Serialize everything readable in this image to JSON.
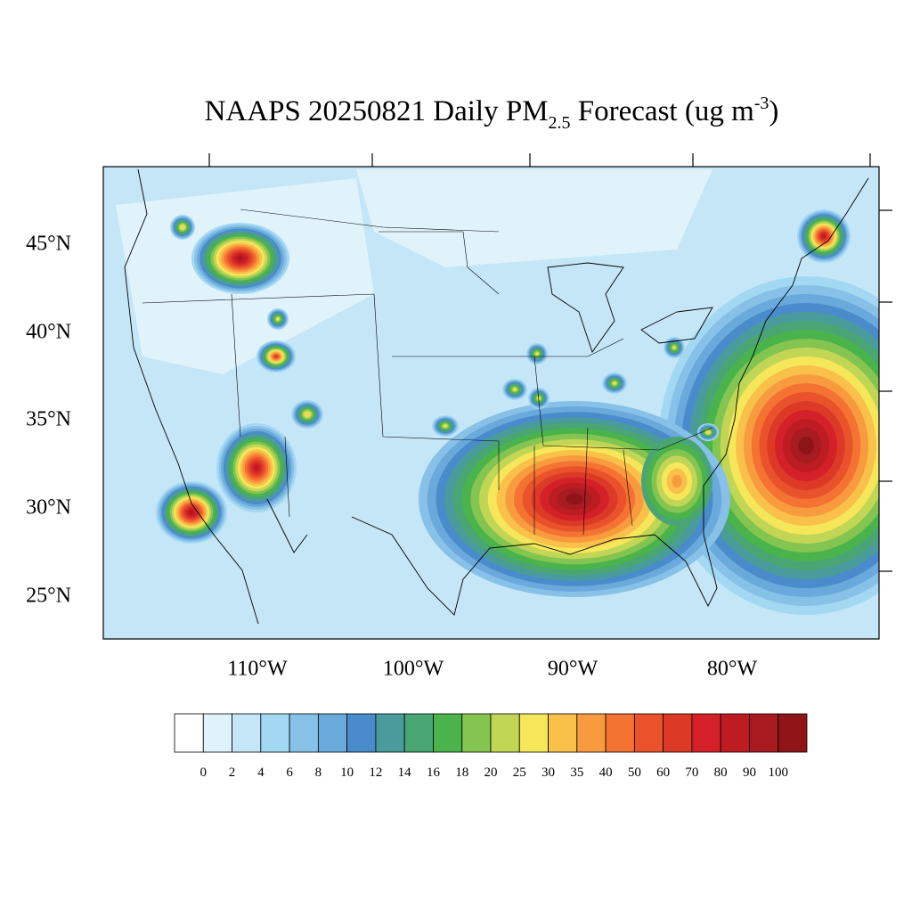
{
  "title": {
    "main": "NAAPS 20250821 Daily PM",
    "subscript": "2.5",
    "middle": " Forecast (ug m",
    "superscript": "-3",
    "end": ")"
  },
  "map": {
    "lat_labels": [
      "45°N",
      "40°N",
      "35°N",
      "30°N",
      "25°N"
    ],
    "lon_labels": [
      "110°W",
      "100°W",
      "90°W",
      "80°W"
    ]
  },
  "colorbar": {
    "levels": [
      0,
      2,
      4,
      6,
      8,
      10,
      12,
      14,
      16,
      18,
      20,
      25,
      30,
      35,
      40,
      50,
      60,
      70,
      80,
      90,
      100
    ],
    "colors": [
      "#ffffff",
      "#e0f3fb",
      "#c4e6f7",
      "#a3d8f3",
      "#88c1e8",
      "#6aa9dc",
      "#4a8ccb",
      "#4a9b9b",
      "#4aa574",
      "#4ab34c",
      "#84c450",
      "#c2d655",
      "#f5e65a",
      "#f9c04a",
      "#f89b3e",
      "#f47232",
      "#e9522b",
      "#dc3a26",
      "#d42029",
      "#be1c23",
      "#a81b20",
      "#8e1417"
    ]
  }
}
